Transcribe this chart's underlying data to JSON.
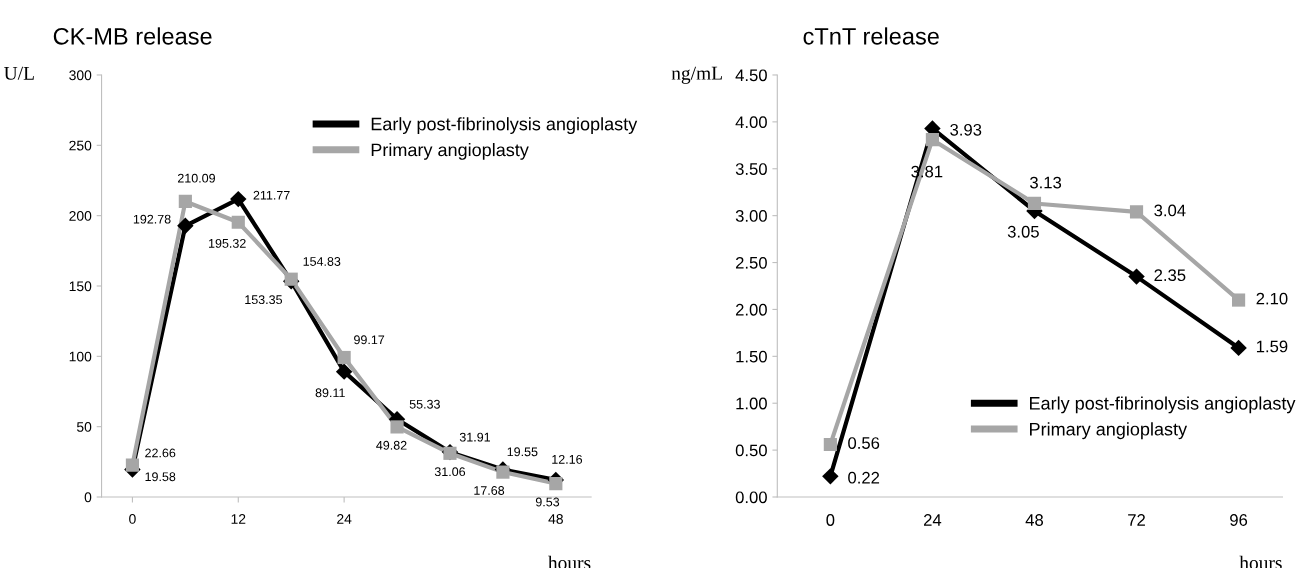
{
  "chart_data": [
    {
      "type": "line",
      "title": "CK-MB release",
      "ylabel": "U/L",
      "xlabel": "hours",
      "x": [
        0,
        6,
        12,
        18,
        24,
        30,
        36,
        42,
        48
      ],
      "xlim": [
        -3.5,
        52
      ],
      "xticks": [
        0,
        12,
        24,
        48
      ],
      "ylim": [
        0,
        300
      ],
      "yticks": [
        0,
        50,
        100,
        150,
        200,
        250,
        300
      ],
      "series": [
        {
          "name": "Early post-fibrinolysis angioplasty",
          "color": "#000000",
          "marker": "diamond",
          "values": [
            19.58,
            192.78,
            211.77,
            153.35,
            89.11,
            55.33,
            31.91,
            19.55,
            12.16
          ],
          "value_labels": [
            "19.58",
            "192.78",
            "211.77",
            "153.35",
            "89.11",
            "55.33",
            "31.91",
            "19.55",
            "12.16"
          ]
        },
        {
          "name": "Primary angioplasty",
          "color": "#a6a6a6",
          "marker": "square",
          "values": [
            22.66,
            210.09,
            195.32,
            154.83,
            99.17,
            49.82,
            31.06,
            17.68,
            9.53
          ],
          "value_labels": [
            "22.66",
            "210.09",
            "195.32",
            "154.83",
            "99.17",
            "49.82",
            "31.06",
            "17.68",
            "9.53"
          ]
        }
      ],
      "data_labels": true,
      "grid": false,
      "legend": "top right",
      "line_style": "solid"
    },
    {
      "type": "line",
      "title": "cTnT release",
      "ylabel": "ng/mL",
      "xlabel": "hours",
      "categories": [
        "0",
        "24",
        "48",
        "72",
        "96"
      ],
      "ylim": [
        0,
        4.5
      ],
      "yticks": [
        {
          "value": 0,
          "label": "0.00"
        },
        {
          "value": 0.5,
          "label": "0.50"
        },
        {
          "value": 1,
          "label": "1.00"
        },
        {
          "value": 1.5,
          "label": "1.50"
        },
        {
          "value": 2,
          "label": "2.00"
        },
        {
          "value": 2.5,
          "label": "2.50"
        },
        {
          "value": 3,
          "label": "3.00"
        },
        {
          "value": 3.5,
          "label": "3.50"
        },
        {
          "value": 4,
          "label": "4.00"
        },
        {
          "value": 4.5,
          "label": "4.50"
        }
      ],
      "series": [
        {
          "name": "Early post-fibrinolysis angioplasty",
          "color": "#000000",
          "marker": "diamond",
          "values": [
            0.22,
            3.93,
            3.05,
            2.35,
            1.59
          ],
          "value_labels": [
            "0.22",
            "3.93",
            "3.05",
            "2.35",
            "1.59"
          ]
        },
        {
          "name": "Primary angioplasty",
          "color": "#a6a6a6",
          "marker": "square",
          "values": [
            0.56,
            3.81,
            3.13,
            3.04,
            2.1
          ],
          "value_labels": [
            "0.56",
            "3.81",
            "3.13",
            "3.04",
            "2.10"
          ]
        }
      ],
      "data_labels": true,
      "grid": false,
      "legend": "bottom right",
      "line_style": "solid"
    }
  ]
}
